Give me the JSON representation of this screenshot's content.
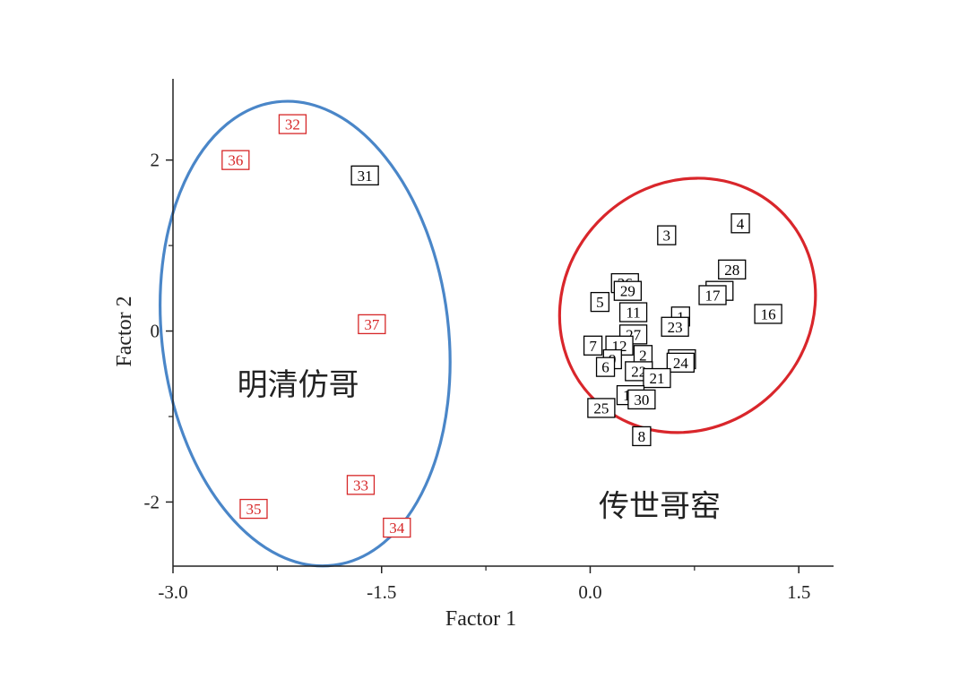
{
  "chart_data": {
    "type": "scatter",
    "xlabel": "Factor 1",
    "ylabel": "Factor 2",
    "xlim": [
      -3.0,
      1.75
    ],
    "ylim": [
      -2.75,
      2.95
    ],
    "x_ticks": [
      -3.0,
      -1.5,
      0.0,
      1.5
    ],
    "x_tick_labels": [
      "-3.0",
      "-1.5",
      "0.0",
      "1.5"
    ],
    "y_ticks": [
      -2,
      0,
      2
    ],
    "y_tick_labels": [
      "-2",
      "0",
      "2"
    ],
    "grid": false,
    "series": [
      {
        "color": "#d62728",
        "points": [
          {
            "label": "32",
            "x": -2.14,
            "y": 2.42
          },
          {
            "label": "36",
            "x": -2.55,
            "y": 2.0
          },
          {
            "label": "37",
            "x": -1.57,
            "y": 0.08
          },
          {
            "label": "33",
            "x": -1.65,
            "y": -1.8
          },
          {
            "label": "35",
            "x": -2.42,
            "y": -2.08
          },
          {
            "label": "34",
            "x": -1.39,
            "y": -2.3
          }
        ]
      },
      {
        "color": "#000000",
        "points": [
          {
            "label": "31",
            "x": -1.62,
            "y": 1.82
          },
          {
            "label": "3",
            "x": 0.55,
            "y": 1.12
          },
          {
            "label": "4",
            "x": 1.08,
            "y": 1.26
          },
          {
            "label": "28",
            "x": 1.02,
            "y": 0.72
          },
          {
            "label": "18",
            "x": 0.93,
            "y": 0.47
          },
          {
            "label": "17",
            "x": 0.88,
            "y": 0.42
          },
          {
            "label": "16",
            "x": 1.28,
            "y": 0.2
          },
          {
            "label": "26",
            "x": 0.25,
            "y": 0.56
          },
          {
            "label": "29",
            "x": 0.27,
            "y": 0.47
          },
          {
            "label": "5",
            "x": 0.07,
            "y": 0.34
          },
          {
            "label": "11",
            "x": 0.31,
            "y": 0.22
          },
          {
            "label": "1",
            "x": 0.65,
            "y": 0.17
          },
          {
            "label": "23",
            "x": 0.61,
            "y": 0.05
          },
          {
            "label": "27",
            "x": 0.31,
            "y": -0.04
          },
          {
            "label": "7",
            "x": 0.02,
            "y": -0.17
          },
          {
            "label": "12",
            "x": 0.21,
            "y": -0.17
          },
          {
            "label": "9",
            "x": 0.16,
            "y": -0.33
          },
          {
            "label": "2",
            "x": 0.38,
            "y": -0.28
          },
          {
            "label": "6",
            "x": 0.11,
            "y": -0.42
          },
          {
            "label": "19",
            "x": 0.66,
            "y": -0.33
          },
          {
            "label": "24",
            "x": 0.65,
            "y": -0.37
          },
          {
            "label": "22",
            "x": 0.35,
            "y": -0.47
          },
          {
            "label": "21",
            "x": 0.48,
            "y": -0.55
          },
          {
            "label": "14",
            "x": 0.29,
            "y": -0.75
          },
          {
            "label": "30",
            "x": 0.37,
            "y": -0.8
          },
          {
            "label": "25",
            "x": 0.08,
            "y": -0.9
          },
          {
            "label": "8",
            "x": 0.37,
            "y": -1.23
          }
        ]
      }
    ],
    "ellipses": [
      {
        "color": "#4a86c8",
        "cx": -2.05,
        "cy": -0.03,
        "rx": 1.03,
        "ry": 2.73,
        "angle_deg": -7
      },
      {
        "color": "#d9262b",
        "cx": 0.7,
        "cy": 0.3,
        "rx": 0.88,
        "ry": 1.55,
        "angle_deg": 47
      }
    ],
    "annotations": [
      {
        "text": "明清仿哥",
        "x": -2.1,
        "y": -0.75
      },
      {
        "text": "传世哥窑",
        "x": 0.5,
        "y": -2.17
      }
    ]
  }
}
